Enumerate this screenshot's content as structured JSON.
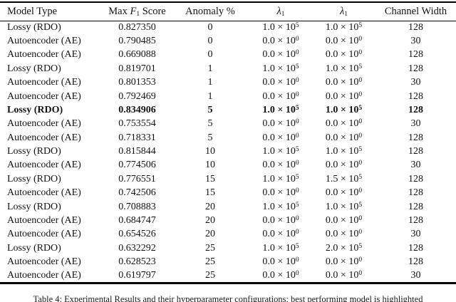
{
  "page": {
    "background": "#ffffff",
    "text_color": "#131313",
    "rule_color": "#000000"
  },
  "table": {
    "header": {
      "model": "Model Type",
      "score_pre": "Max ",
      "score_var": "F",
      "score_sub": "1",
      "score_post": " Score",
      "anomaly": "Anomaly %",
      "lambda_a_var": "λ",
      "lambda_a_sub": "1",
      "lambda_b_var": "λ",
      "lambda_b_sub": "1",
      "channel": "Channel Width"
    },
    "times_sign": "×",
    "rows": [
      {
        "model": "Lossy (RDO)",
        "score": "0.827350",
        "anomaly": "0",
        "lambda_a": {
          "m": "1.0",
          "e": "5"
        },
        "lambda_b": {
          "m": "1.0",
          "e": "5"
        },
        "channel_width": "128",
        "bold": false
      },
      {
        "model": "Autoencoder (AE)",
        "score": "0.790485",
        "anomaly": "0",
        "lambda_a": {
          "m": "0.0",
          "e": "0"
        },
        "lambda_b": {
          "m": "0.0",
          "e": "0"
        },
        "channel_width": "30",
        "bold": false
      },
      {
        "model": "Autoencoder (AE)",
        "score": "0.669088",
        "anomaly": "0",
        "lambda_a": {
          "m": "0.0",
          "e": "0"
        },
        "lambda_b": {
          "m": "0.0",
          "e": "0"
        },
        "channel_width": "128",
        "bold": false
      },
      {
        "model": "Lossy (RDO)",
        "score": "0.819701",
        "anomaly": "1",
        "lambda_a": {
          "m": "1.0",
          "e": "5"
        },
        "lambda_b": {
          "m": "1.0",
          "e": "5"
        },
        "channel_width": "128",
        "bold": false
      },
      {
        "model": "Autoencoder (AE)",
        "score": "0.801353",
        "anomaly": "1",
        "lambda_a": {
          "m": "0.0",
          "e": "0"
        },
        "lambda_b": {
          "m": "0.0",
          "e": "0"
        },
        "channel_width": "30",
        "bold": false
      },
      {
        "model": "Autoencoder (AE)",
        "score": "0.792469",
        "anomaly": "1",
        "lambda_a": {
          "m": "0.0",
          "e": "0"
        },
        "lambda_b": {
          "m": "0.0",
          "e": "0"
        },
        "channel_width": "128",
        "bold": false
      },
      {
        "model": "Lossy (RDO)",
        "score": "0.834906",
        "anomaly": "5",
        "lambda_a": {
          "m": "1.0",
          "e": "5"
        },
        "lambda_b": {
          "m": "1.0",
          "e": "5"
        },
        "channel_width": "128",
        "bold": true
      },
      {
        "model": "Autoencoder (AE)",
        "score": "0.753554",
        "anomaly": "5",
        "lambda_a": {
          "m": "0.0",
          "e": "0"
        },
        "lambda_b": {
          "m": "0.0",
          "e": "0"
        },
        "channel_width": "30",
        "bold": false
      },
      {
        "model": "Autoencoder (AE)",
        "score": "0.718331",
        "anomaly": "5",
        "lambda_a": {
          "m": "0.0",
          "e": "0"
        },
        "lambda_b": {
          "m": "0.0",
          "e": "0"
        },
        "channel_width": "128",
        "bold": false
      },
      {
        "model": "Lossy (RDO)",
        "score": "0.815844",
        "anomaly": "10",
        "lambda_a": {
          "m": "1.0",
          "e": "5"
        },
        "lambda_b": {
          "m": "1.0",
          "e": "5"
        },
        "channel_width": "128",
        "bold": false
      },
      {
        "model": "Autoencoder (AE)",
        "score": "0.774506",
        "anomaly": "10",
        "lambda_a": {
          "m": "0.0",
          "e": "0"
        },
        "lambda_b": {
          "m": "0.0",
          "e": "0"
        },
        "channel_width": "30",
        "bold": false
      },
      {
        "model": "Lossy (RDO)",
        "score": "0.776551",
        "anomaly": "15",
        "lambda_a": {
          "m": "1.0",
          "e": "5"
        },
        "lambda_b": {
          "m": "1.5",
          "e": "5"
        },
        "channel_width": "128",
        "bold": false
      },
      {
        "model": "Autoencoder (AE)",
        "score": "0.742506",
        "anomaly": "15",
        "lambda_a": {
          "m": "0.0",
          "e": "0"
        },
        "lambda_b": {
          "m": "0.0",
          "e": "0"
        },
        "channel_width": "128",
        "bold": false
      },
      {
        "model": "Lossy (RDO)",
        "score": "0.708883",
        "anomaly": "20",
        "lambda_a": {
          "m": "1.0",
          "e": "5"
        },
        "lambda_b": {
          "m": "1.0",
          "e": "5"
        },
        "channel_width": "128",
        "bold": false
      },
      {
        "model": "Autoencoder (AE)",
        "score": "0.684747",
        "anomaly": "20",
        "lambda_a": {
          "m": "0.0",
          "e": "0"
        },
        "lambda_b": {
          "m": "0.0",
          "e": "0"
        },
        "channel_width": "128",
        "bold": false
      },
      {
        "model": "Autoencoder (AE)",
        "score": "0.654526",
        "anomaly": "20",
        "lambda_a": {
          "m": "0.0",
          "e": "0"
        },
        "lambda_b": {
          "m": "0.0",
          "e": "0"
        },
        "channel_width": "30",
        "bold": false
      },
      {
        "model": "Lossy (RDO)",
        "score": "0.632292",
        "anomaly": "25",
        "lambda_a": {
          "m": "1.0",
          "e": "5"
        },
        "lambda_b": {
          "m": "2.0",
          "e": "5"
        },
        "channel_width": "128",
        "bold": false
      },
      {
        "model": "Autoencoder (AE)",
        "score": "0.628523",
        "anomaly": "25",
        "lambda_a": {
          "m": "0.0",
          "e": "0"
        },
        "lambda_b": {
          "m": "0.0",
          "e": "0"
        },
        "channel_width": "128",
        "bold": false
      },
      {
        "model": "Autoencoder (AE)",
        "score": "0.619797",
        "anomaly": "25",
        "lambda_a": {
          "m": "0.0",
          "e": "0"
        },
        "lambda_b": {
          "m": "0.0",
          "e": "0"
        },
        "channel_width": "30",
        "bold": false
      }
    ]
  },
  "caption": {
    "text": "Table 4: Experimental Results and their hyperparameter configurations; best performing model is highlighted"
  }
}
